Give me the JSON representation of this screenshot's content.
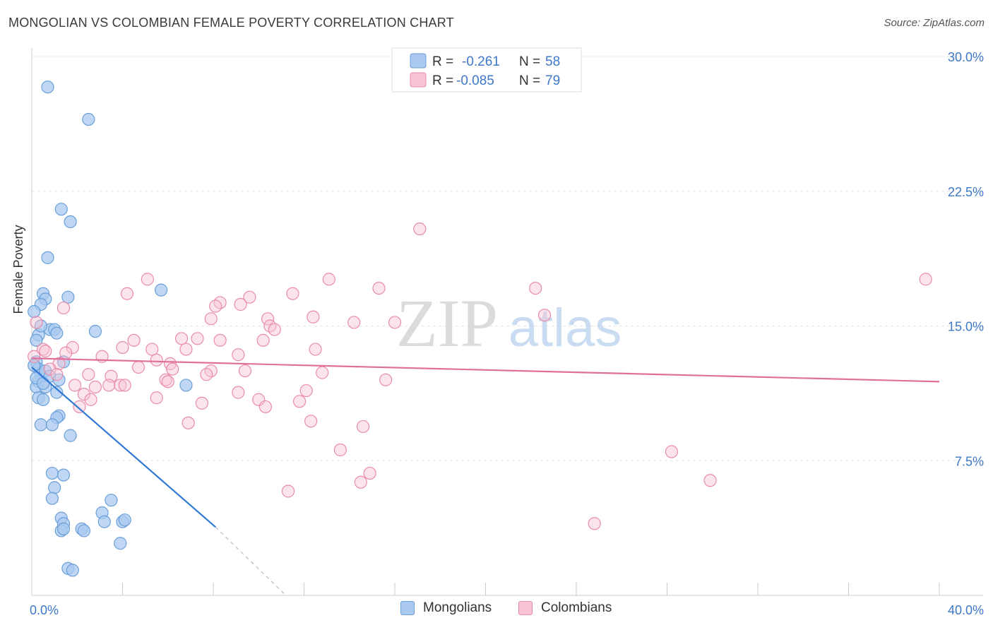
{
  "title": "MONGOLIAN VS COLOMBIAN FEMALE POVERTY CORRELATION CHART",
  "source": "Source: ZipAtlas.com",
  "watermark": {
    "zip": "ZIP",
    "atlas": "atlas"
  },
  "colors": {
    "mongolian_fill": "#a9c9f0",
    "mongolian_stroke": "#6a9fd8",
    "mongolian_line": "#2f78d6",
    "colombian_fill": "#f7c3d3",
    "colombian_stroke": "#e98cab",
    "colombian_line": "#e0709a",
    "axis_text": "#3d78c9"
  },
  "legend_top": [
    {
      "r_label": "R =",
      "r_value": "-0.261",
      "n_label": "N =",
      "n_value": "58"
    },
    {
      "r_label": "R =",
      "r_value": "-0.085",
      "n_label": "N =",
      "n_value": "79"
    }
  ],
  "chart_data": {
    "type": "scatter",
    "xlabel": "",
    "ylabel": "Female Poverty",
    "xlim": [
      0,
      40
    ],
    "ylim": [
      0,
      30
    ],
    "x_tick_labels": [
      "0.0%",
      "40.0%"
    ],
    "y_ticks": [
      7.5,
      15.0,
      22.5,
      30.0
    ],
    "y_tick_labels": [
      "7.5%",
      "15.0%",
      "22.5%",
      "30.0%"
    ],
    "grid": true,
    "legend": "bottom-center",
    "series": [
      {
        "name": "Mongolians",
        "trend": {
          "x": [
            0.0,
            8.1
          ],
          "y": [
            12.7,
            3.8
          ],
          "dashed_to": [
            11.2,
            0.0
          ]
        },
        "points": [
          [
            0.7,
            28.3
          ],
          [
            2.5,
            26.5
          ],
          [
            1.3,
            21.5
          ],
          [
            1.7,
            20.8
          ],
          [
            0.7,
            18.8
          ],
          [
            5.7,
            17.0
          ],
          [
            0.5,
            16.8
          ],
          [
            0.6,
            16.5
          ],
          [
            1.6,
            16.6
          ],
          [
            0.4,
            16.2
          ],
          [
            0.1,
            15.8
          ],
          [
            0.8,
            14.8
          ],
          [
            1.0,
            14.8
          ],
          [
            1.1,
            14.6
          ],
          [
            2.8,
            14.7
          ],
          [
            0.3,
            14.5
          ],
          [
            0.2,
            14.2
          ],
          [
            0.2,
            13.0
          ],
          [
            1.4,
            13.0
          ],
          [
            0.3,
            12.6
          ],
          [
            0.4,
            12.3
          ],
          [
            0.6,
            12.5
          ],
          [
            0.8,
            12.2
          ],
          [
            0.3,
            11.9
          ],
          [
            0.2,
            11.6
          ],
          [
            0.6,
            11.6
          ],
          [
            1.1,
            11.3
          ],
          [
            6.8,
            11.7
          ],
          [
            0.3,
            11.0
          ],
          [
            0.5,
            10.9
          ],
          [
            1.2,
            10.0
          ],
          [
            1.1,
            9.9
          ],
          [
            0.4,
            9.5
          ],
          [
            0.9,
            9.5
          ],
          [
            1.7,
            8.9
          ],
          [
            0.9,
            6.8
          ],
          [
            1.4,
            6.7
          ],
          [
            1.0,
            6.0
          ],
          [
            0.9,
            5.4
          ],
          [
            3.5,
            5.3
          ],
          [
            3.1,
            4.6
          ],
          [
            1.3,
            4.3
          ],
          [
            1.4,
            4.0
          ],
          [
            3.2,
            4.1
          ],
          [
            4.0,
            4.1
          ],
          [
            4.1,
            4.2
          ],
          [
            1.3,
            3.6
          ],
          [
            1.4,
            3.7
          ],
          [
            2.2,
            3.7
          ],
          [
            2.3,
            3.6
          ],
          [
            3.9,
            2.9
          ],
          [
            1.6,
            1.5
          ],
          [
            1.8,
            1.4
          ],
          [
            0.2,
            12.1
          ],
          [
            0.5,
            11.8
          ],
          [
            1.2,
            12.0
          ],
          [
            0.1,
            12.8
          ],
          [
            0.4,
            15.0
          ]
        ]
      },
      {
        "name": "Colombians",
        "trend": {
          "x": [
            0.0,
            40.0
          ],
          "y": [
            13.2,
            11.9
          ]
        },
        "points": [
          [
            17.1,
            20.4
          ],
          [
            39.4,
            17.6
          ],
          [
            5.1,
            17.6
          ],
          [
            13.1,
            17.6
          ],
          [
            15.3,
            17.1
          ],
          [
            22.2,
            17.1
          ],
          [
            4.2,
            16.8
          ],
          [
            9.6,
            16.6
          ],
          [
            11.5,
            16.8
          ],
          [
            8.3,
            16.3
          ],
          [
            8.1,
            16.1
          ],
          [
            9.2,
            16.2
          ],
          [
            1.4,
            16.0
          ],
          [
            7.9,
            15.4
          ],
          [
            10.4,
            15.4
          ],
          [
            12.4,
            15.5
          ],
          [
            22.6,
            15.6
          ],
          [
            14.2,
            15.2
          ],
          [
            16.0,
            15.2
          ],
          [
            10.5,
            15.0
          ],
          [
            10.7,
            14.8
          ],
          [
            0.2,
            15.2
          ],
          [
            6.6,
            14.3
          ],
          [
            7.3,
            14.3
          ],
          [
            8.3,
            14.2
          ],
          [
            4.5,
            14.2
          ],
          [
            10.2,
            14.2
          ],
          [
            1.8,
            13.8
          ],
          [
            4.0,
            13.8
          ],
          [
            0.5,
            13.7
          ],
          [
            0.6,
            13.6
          ],
          [
            5.3,
            13.7
          ],
          [
            6.8,
            13.7
          ],
          [
            12.5,
            13.7
          ],
          [
            1.5,
            13.5
          ],
          [
            3.1,
            13.3
          ],
          [
            9.1,
            13.4
          ],
          [
            5.5,
            13.1
          ],
          [
            6.1,
            12.9
          ],
          [
            1.2,
            12.9
          ],
          [
            0.8,
            12.6
          ],
          [
            4.7,
            12.7
          ],
          [
            6.2,
            12.6
          ],
          [
            1.1,
            12.3
          ],
          [
            7.9,
            12.5
          ],
          [
            9.4,
            12.5
          ],
          [
            12.8,
            12.4
          ],
          [
            2.5,
            12.3
          ],
          [
            3.5,
            12.2
          ],
          [
            5.9,
            12.0
          ],
          [
            7.7,
            12.3
          ],
          [
            15.6,
            12.0
          ],
          [
            1.9,
            11.7
          ],
          [
            3.4,
            11.7
          ],
          [
            3.9,
            11.7
          ],
          [
            4.1,
            11.7
          ],
          [
            6.0,
            11.9
          ],
          [
            2.8,
            11.6
          ],
          [
            2.3,
            11.2
          ],
          [
            12.1,
            11.4
          ],
          [
            9.1,
            11.3
          ],
          [
            2.6,
            10.9
          ],
          [
            5.5,
            11.0
          ],
          [
            10.0,
            10.9
          ],
          [
            11.8,
            10.8
          ],
          [
            7.5,
            10.7
          ],
          [
            2.1,
            10.5
          ],
          [
            10.3,
            10.5
          ],
          [
            6.9,
            9.6
          ],
          [
            12.3,
            9.7
          ],
          [
            14.6,
            9.4
          ],
          [
            13.6,
            8.1
          ],
          [
            28.2,
            8.0
          ],
          [
            14.9,
            6.8
          ],
          [
            14.5,
            6.3
          ],
          [
            11.3,
            5.8
          ],
          [
            29.9,
            6.4
          ],
          [
            24.8,
            4.0
          ],
          [
            0.1,
            13.3
          ]
        ]
      }
    ]
  },
  "bottom_legend": [
    {
      "label": "Mongolians"
    },
    {
      "label": "Colombians"
    }
  ]
}
